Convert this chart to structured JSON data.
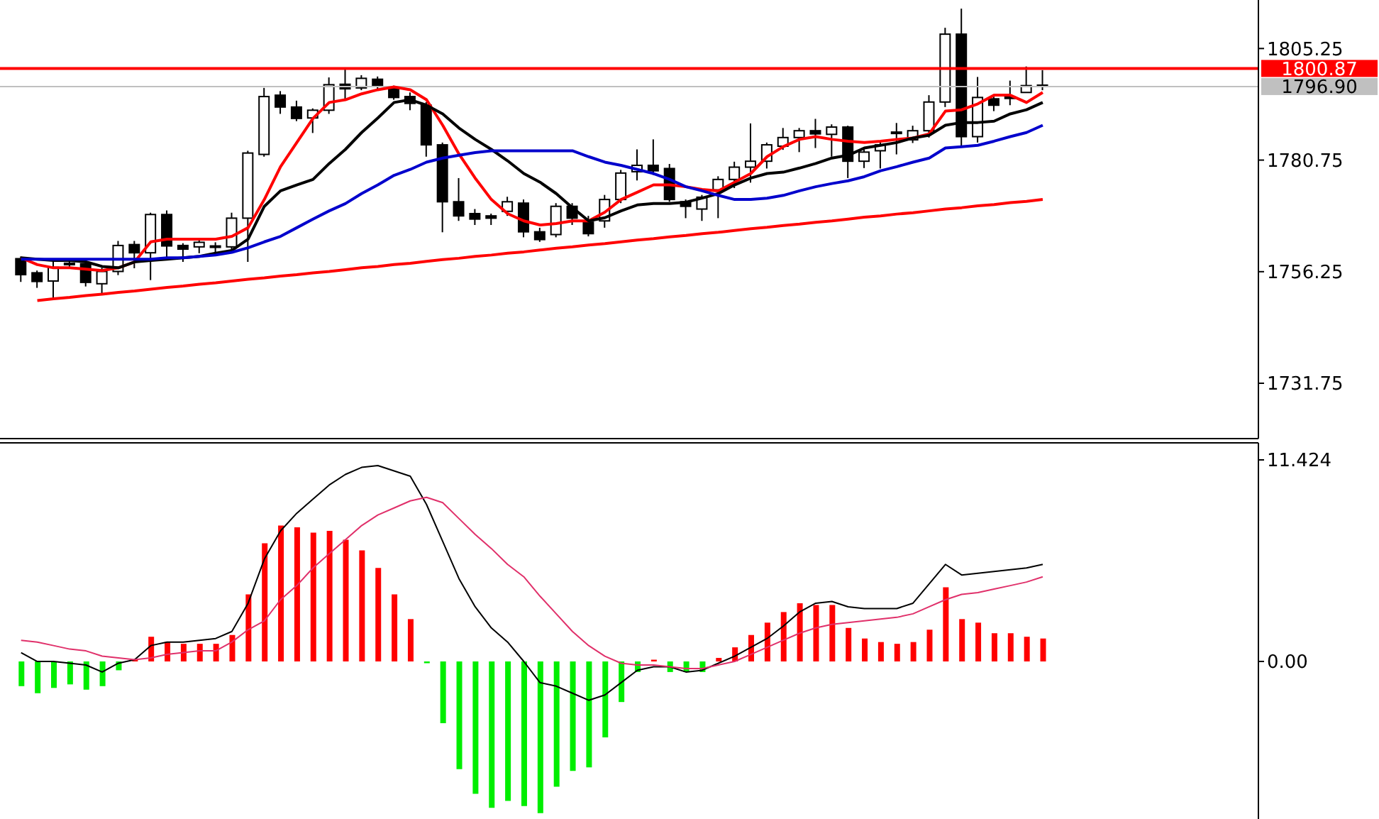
{
  "chart_data": [
    {
      "type": "candlestick",
      "categories": [
        null,
        null,
        null,
        null,
        null,
        null,
        null,
        null,
        null,
        null,
        null,
        null,
        null,
        null,
        null,
        null,
        null,
        null,
        null,
        null,
        null,
        null,
        null,
        null,
        null,
        null,
        null,
        null,
        null,
        null,
        null,
        null,
        null,
        null,
        null,
        null,
        null,
        null,
        null,
        null,
        null,
        null,
        null,
        null,
        null,
        null,
        null,
        null,
        null,
        null,
        null,
        null,
        null,
        null,
        null,
        null,
        null,
        null,
        null,
        null,
        null,
        null,
        null,
        null
      ],
      "ohlc": [
        [
          1759.1,
          1759.6,
          1754,
          1755.6
        ],
        [
          1756,
          1756.5,
          1752.7,
          1754.1
        ],
        [
          1754.2,
          1759.1,
          1750.2,
          1757.2
        ],
        [
          1757.9,
          1758.6,
          1757.3,
          1758.1
        ],
        [
          1758,
          1758.6,
          1753,
          1753.9
        ],
        [
          1753.6,
          1757.1,
          1751.3,
          1756.3
        ],
        [
          1756.3,
          1763,
          1755.5,
          1762
        ],
        [
          1762.2,
          1763,
          1757,
          1760.4
        ],
        [
          1760.4,
          1769.2,
          1754.4,
          1768.8
        ],
        [
          1768.8,
          1769.7,
          1759.1,
          1761.9
        ],
        [
          1762,
          1762.5,
          1758.4,
          1761.2
        ],
        [
          1761.7,
          1763.4,
          1760.3,
          1762.7
        ],
        [
          1761.7,
          1762.7,
          1759.8,
          1761.9
        ],
        [
          1761.7,
          1769.2,
          1760.7,
          1768
        ],
        [
          1768,
          1782.8,
          1758.4,
          1782.3
        ],
        [
          1782,
          1796.6,
          1781.5,
          1794.7
        ],
        [
          1795,
          1795.9,
          1790.9,
          1792.4
        ],
        [
          1792.4,
          1793.8,
          1789.3,
          1789.9
        ],
        [
          1790,
          1792.1,
          1786.7,
          1791.7
        ],
        [
          1791.7,
          1798.9,
          1790.9,
          1797.3
        ],
        [
          1797.4,
          1800.8,
          1794,
          1796.4
        ],
        [
          1796.6,
          1799.4,
          1796.1,
          1798.7
        ],
        [
          1798.5,
          1799.1,
          1796.1,
          1796.9
        ],
        [
          1796.6,
          1797.1,
          1794,
          1794.5
        ],
        [
          1794.7,
          1795.6,
          1791.7,
          1793.2
        ],
        [
          1792.8,
          1793.5,
          1781.5,
          1784.1
        ],
        [
          1784.1,
          1784.6,
          1764.9,
          1771.6
        ],
        [
          1771.6,
          1776.8,
          1767.4,
          1768.5
        ],
        [
          1769,
          1770,
          1766.5,
          1767.8
        ],
        [
          1768.5,
          1769,
          1766.5,
          1768
        ],
        [
          1769.5,
          1772.7,
          1768.5,
          1771.6
        ],
        [
          1771.3,
          1772.1,
          1763.8,
          1765
        ],
        [
          1765,
          1765.9,
          1762.8,
          1763.3
        ],
        [
          1764.4,
          1771.3,
          1763.8,
          1770.6
        ],
        [
          1770.6,
          1771.3,
          1766.5,
          1768
        ],
        [
          1767.1,
          1768.5,
          1764,
          1764.6
        ],
        [
          1767.4,
          1773.1,
          1765.9,
          1772.1
        ],
        [
          1772.1,
          1778.6,
          1771.3,
          1777.9
        ],
        [
          1778.2,
          1783.1,
          1776.3,
          1779.6
        ],
        [
          1779.6,
          1785.3,
          1777.5,
          1778.4
        ],
        [
          1778.9,
          1779.9,
          1771.6,
          1772.1
        ],
        [
          1771.6,
          1772.1,
          1768,
          1770.6
        ],
        [
          1770,
          1773.1,
          1767.4,
          1772.6
        ],
        [
          1774.2,
          1777.2,
          1768,
          1776.5
        ],
        [
          1776.5,
          1780.4,
          1774.6,
          1779.2
        ],
        [
          1779.2,
          1788.8,
          1775.8,
          1780.5
        ],
        [
          1780.5,
          1784.6,
          1778.9,
          1784.1
        ],
        [
          1783.8,
          1787.8,
          1783,
          1785.7
        ],
        [
          1785.7,
          1787.8,
          1782.5,
          1787.2
        ],
        [
          1787.2,
          1789.8,
          1783.4,
          1786.5
        ],
        [
          1786.4,
          1788.6,
          1781.5,
          1788
        ],
        [
          1788,
          1788.3,
          1776.8,
          1780.5
        ],
        [
          1780.5,
          1783.1,
          1779,
          1782.5
        ],
        [
          1782.8,
          1784.9,
          1778.9,
          1784.1
        ],
        [
          1786.7,
          1788.9,
          1782,
          1786.9
        ],
        [
          1785.2,
          1788.3,
          1784.5,
          1787.2
        ],
        [
          1787.2,
          1795,
          1785.7,
          1793.5
        ],
        [
          1793.5,
          1809.8,
          1792.4,
          1808.4
        ],
        [
          1808.4,
          1814,
          1783.6,
          1785.9
        ],
        [
          1785.9,
          1799,
          1784.6,
          1794.5
        ],
        [
          1794.2,
          1794.8,
          1791.5,
          1792.8
        ],
        [
          1794.3,
          1798.2,
          1792.8,
          1794.6
        ],
        [
          1795.6,
          1801.3,
          1795.6,
          1797.1
        ],
        [
          1797.2,
          1800.5,
          1796.1,
          1796.9
        ]
      ],
      "series": [
        {
          "type": "line",
          "color": "#ff0000",
          "values": [
            1759.3,
            1757.8,
            1757.1,
            1757.1,
            1756.8,
            1756.5,
            1757.1,
            1758.4,
            1762.8,
            1763.4,
            1763.4,
            1763.4,
            1763.4,
            1764,
            1765.9,
            1772.1,
            1779.3,
            1784.6,
            1789.9,
            1793.4,
            1794,
            1795.3,
            1796.2,
            1796.8,
            1796.2,
            1794,
            1788.4,
            1782.1,
            1776.8,
            1772.1,
            1769,
            1767.4,
            1766.5,
            1766.8,
            1767.4,
            1767.4,
            1769.3,
            1772.1,
            1773.7,
            1775.3,
            1775.3,
            1774.9,
            1774.3,
            1774,
            1775.9,
            1777.8,
            1781.5,
            1783.7,
            1785.3,
            1785.9,
            1785.3,
            1784.9,
            1784.6,
            1784.9,
            1785.3,
            1785.6,
            1786.5,
            1791.5,
            1791.8,
            1793.1,
            1795,
            1795,
            1793.4,
            1795.6
          ]
        },
        {
          "type": "line",
          "color": "#000000",
          "values": [
            1759.3,
            1759,
            1758.7,
            1758.7,
            1758.4,
            1757.4,
            1757.1,
            1758.4,
            1758.7,
            1759,
            1759.3,
            1759.6,
            1760.3,
            1760.9,
            1763.4,
            1770.6,
            1774,
            1775.3,
            1776.5,
            1780,
            1783.1,
            1786.8,
            1790,
            1793.4,
            1794,
            1792.8,
            1790.9,
            1787.8,
            1785.3,
            1783.1,
            1780.6,
            1777.8,
            1775.9,
            1773.4,
            1770.3,
            1767.4,
            1768.1,
            1769.6,
            1770.9,
            1771.2,
            1771.2,
            1771.5,
            1772.4,
            1773.4,
            1775.3,
            1776.8,
            1777.8,
            1778.1,
            1779,
            1780,
            1781.2,
            1781.8,
            1783.4,
            1784,
            1784.6,
            1785.6,
            1786.2,
            1788.4,
            1789,
            1789,
            1789.3,
            1790.9,
            1791.8,
            1793.4
          ]
        },
        {
          "type": "line",
          "color": "#0000cc",
          "values": [
            1759,
            1759,
            1759,
            1759,
            1759,
            1759,
            1759,
            1759,
            1759,
            1759.3,
            1759.3,
            1759.6,
            1759.9,
            1760.5,
            1761.5,
            1762.8,
            1764,
            1765.9,
            1767.8,
            1769.6,
            1771.2,
            1773.4,
            1775.3,
            1777.4,
            1778.7,
            1780.3,
            1781.2,
            1781.8,
            1782.4,
            1782.8,
            1782.8,
            1782.8,
            1782.8,
            1782.8,
            1782.8,
            1781.5,
            1780.3,
            1779.6,
            1778.7,
            1777.8,
            1776.5,
            1774.9,
            1774,
            1773,
            1772.1,
            1772.1,
            1772.4,
            1773,
            1774,
            1774.9,
            1775.6,
            1776.2,
            1777.1,
            1778.4,
            1779.3,
            1780.3,
            1781.2,
            1783.4,
            1783.7,
            1784,
            1784.9,
            1785.9,
            1786.8,
            1788.4
          ]
        },
        {
          "type": "line",
          "color": "#ff0000",
          "values": [
            null,
            1749.9,
            1750.3,
            1750.6,
            1751,
            1751.3,
            1751.7,
            1752,
            1752.4,
            1752.8,
            1753.1,
            1753.5,
            1753.8,
            1754.2,
            1754.6,
            1754.9,
            1755.3,
            1755.6,
            1756,
            1756.3,
            1756.7,
            1757.1,
            1757.4,
            1757.8,
            1758.1,
            1758.5,
            1758.9,
            1759.2,
            1759.6,
            1759.9,
            1760.3,
            1760.6,
            1761,
            1761.4,
            1761.7,
            1762.1,
            1762.4,
            1762.8,
            1763.2,
            1763.5,
            1763.9,
            1764.2,
            1764.6,
            1764.9,
            1765.3,
            1765.7,
            1766,
            1766.4,
            1766.7,
            1767.1,
            1767.4,
            1767.8,
            1768.2,
            1768.5,
            1768.9,
            1769.2,
            1769.6,
            1770,
            1770.3,
            1770.7,
            1771,
            1771.4,
            1771.7,
            1772.1
          ]
        }
      ],
      "ylim": [
        1719.6,
        1815.9
      ],
      "yticks": [
        1731.75,
        1756.25,
        1780.75,
        1805.25
      ],
      "ref_lines": [
        {
          "axis": "y",
          "value": 1800.87,
          "label": "1800.87",
          "color": "#ff0000"
        },
        {
          "axis": "y",
          "value": 1796.9,
          "label": "1796.90",
          "color": "#c0c0c0"
        }
      ],
      "tick_labels": "y"
    },
    {
      "type": "bar",
      "categories": [
        null,
        null,
        null,
        null,
        null,
        null,
        null,
        null,
        null,
        null,
        null,
        null,
        null,
        null,
        null,
        null,
        null,
        null,
        null,
        null,
        null,
        null,
        null,
        null,
        null,
        null,
        null,
        null,
        null,
        null,
        null,
        null,
        null,
        null,
        null,
        null,
        null,
        null,
        null,
        null,
        null,
        null,
        null,
        null,
        null,
        null,
        null,
        null,
        null,
        null,
        null,
        null,
        null,
        null,
        null,
        null,
        null,
        null,
        null,
        null,
        null,
        null,
        null,
        null
      ],
      "series": [
        {
          "type": "bar",
          "colors": [
            "#00ee00",
            "#00ee00",
            "#00ee00",
            "#00ee00",
            "#00ee00",
            "#00ee00",
            "#00ee00",
            "#ff0000",
            "#ff0000",
            "#ff0000",
            "#ff0000",
            "#ff0000",
            "#ff0000",
            "#ff0000",
            "#ff0000",
            "#ff0000",
            "#ff0000",
            "#ff0000",
            "#ff0000",
            "#ff0000",
            "#ff0000",
            "#ff0000",
            "#ff0000",
            "#ff0000",
            "#ff0000",
            "#00ee00",
            "#00ee00",
            "#00ee00",
            "#00ee00",
            "#00ee00",
            "#00ee00",
            "#00ee00",
            "#00ee00",
            "#00ee00",
            "#00ee00",
            "#00ee00",
            "#00ee00",
            "#00ee00",
            "#00ee00",
            "#ff0000",
            "#00ee00",
            "#00ee00",
            "#00ee00",
            "#ff0000",
            "#ff0000",
            "#ff0000",
            "#ff0000",
            "#ff0000",
            "#ff0000",
            "#ff0000",
            "#ff0000",
            "#ff0000",
            "#ff0000",
            "#ff0000",
            "#ff0000",
            "#ff0000",
            "#ff0000",
            "#ff0000",
            "#ff0000",
            "#ff0000",
            "#ff0000",
            "#ff0000",
            "#ff0000",
            "#ff0000"
          ],
          "values": [
            -1.4,
            -1.8,
            -1.5,
            -1.3,
            -1.6,
            -1.4,
            -0.5,
            0.1,
            1.4,
            1.1,
            1,
            1,
            1,
            1.5,
            3.8,
            6.7,
            7.7,
            7.6,
            7.3,
            7.4,
            6.9,
            6.3,
            5.3,
            3.8,
            2.4,
            -0.1,
            -3.5,
            -6.1,
            -7.5,
            -8.3,
            -7.9,
            -8.2,
            -8.6,
            -7.1,
            -6.2,
            -6,
            -4.3,
            -2.3,
            -0.6,
            0.1,
            -0.6,
            -0.6,
            -0.6,
            0.2,
            0.8,
            1.5,
            2.2,
            2.8,
            3.3,
            3.2,
            3.2,
            1.9,
            1.3,
            1.1,
            1,
            1.1,
            1.8,
            4.2,
            2.4,
            2.2,
            1.6,
            1.6,
            1.4,
            1.3
          ]
        },
        {
          "type": "line",
          "color": "#000000",
          "values": [
            0.5,
            0,
            0,
            -0.1,
            -0.2,
            -0.6,
            -0.1,
            0.1,
            0.9,
            1.1,
            1.1,
            1.2,
            1.3,
            1.7,
            3.3,
            5.8,
            7.4,
            8.4,
            9.2,
            10,
            10.6,
            11,
            11.1,
            10.8,
            10.5,
            8.9,
            6.8,
            4.7,
            3.1,
            1.9,
            1.1,
            0,
            -1.2,
            -1.4,
            -1.8,
            -2.2,
            -1.9,
            -1.2,
            -0.5,
            -0.3,
            -0.3,
            -0.6,
            -0.5,
            -0.1,
            0.3,
            0.8,
            1.3,
            2,
            2.8,
            3.3,
            3.4,
            3.1,
            3,
            3,
            3,
            3.3,
            4.4,
            5.5,
            4.9,
            5,
            5.1,
            5.2,
            5.3,
            5.5
          ]
        },
        {
          "type": "line",
          "color": "#e0306a",
          "values": [
            1.2,
            1.1,
            0.9,
            0.7,
            0.6,
            0.3,
            0.2,
            0.1,
            0.2,
            0.4,
            0.5,
            0.6,
            0.6,
            1.1,
            1.8,
            2.3,
            3.5,
            4.3,
            5.3,
            6.1,
            6.9,
            7.7,
            8.3,
            8.7,
            9.1,
            9.3,
            9,
            8.1,
            7.2,
            6.4,
            5.5,
            4.8,
            3.7,
            2.7,
            1.7,
            0.9,
            0.3,
            -0.1,
            -0.2,
            -0.2,
            -0.3,
            -0.4,
            -0.4,
            -0.2,
            0,
            0.4,
            0.8,
            1.2,
            1.6,
            1.9,
            2.1,
            2.2,
            2.3,
            2.4,
            2.5,
            2.7,
            3.1,
            3.5,
            3.8,
            3.9,
            4.1,
            4.3,
            4.5,
            4.8
          ]
        }
      ],
      "ylim": [
        -8.93,
        12.39
      ],
      "yticks": [
        {
          "value": 0,
          "label": "0.00"
        },
        11.424
      ],
      "tick_labels": "y"
    }
  ]
}
